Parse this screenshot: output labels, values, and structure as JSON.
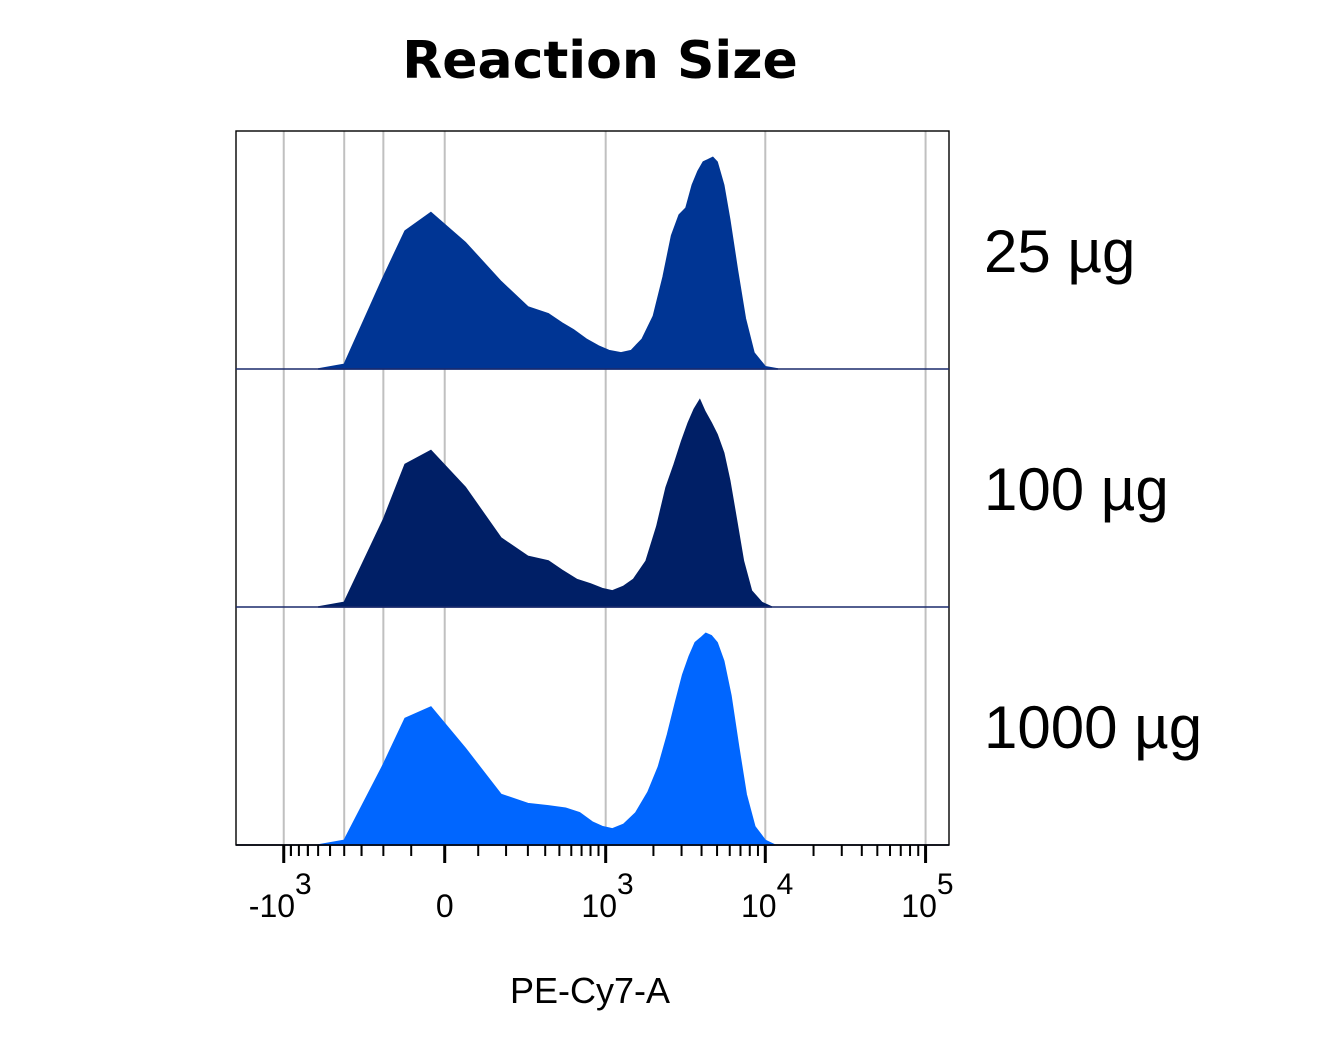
{
  "chart_data": {
    "type": "area",
    "title": "Reaction Size",
    "xlabel": "PE-Cy7-A",
    "x_scale": "biexponential",
    "xlim": [
      -2000,
      140000
    ],
    "x_ticks": [
      {
        "value": -1000,
        "base": "-10",
        "exp": "3"
      },
      {
        "value": 0,
        "base": "0",
        "exp": ""
      },
      {
        "value": 1000,
        "base": "10",
        "exp": "3"
      },
      {
        "value": 10000,
        "base": "10",
        "exp": "4"
      },
      {
        "value": 100000,
        "base": "10",
        "exp": "5"
      }
    ],
    "gridlines": [
      -1000,
      -400,
      -200,
      0,
      1000,
      10000,
      100000
    ],
    "grid": true,
    "series": [
      {
        "name": "25 µg",
        "color": "#003594",
        "points": [
          [
            -600,
            0
          ],
          [
            -400,
            0.02
          ],
          [
            -200,
            0.4
          ],
          [
            -120,
            0.6
          ],
          [
            -40,
            0.68
          ],
          [
            60,
            0.55
          ],
          [
            180,
            0.38
          ],
          [
            300,
            0.27
          ],
          [
            420,
            0.24
          ],
          [
            520,
            0.2
          ],
          [
            620,
            0.17
          ],
          [
            750,
            0.13
          ],
          [
            900,
            0.1
          ],
          [
            1050,
            0.08
          ],
          [
            1250,
            0.07
          ],
          [
            1450,
            0.08
          ],
          [
            1700,
            0.13
          ],
          [
            2000,
            0.23
          ],
          [
            2300,
            0.4
          ],
          [
            2600,
            0.58
          ],
          [
            2900,
            0.67
          ],
          [
            3200,
            0.7
          ],
          [
            3500,
            0.8
          ],
          [
            3800,
            0.86
          ],
          [
            4100,
            0.9
          ],
          [
            4400,
            0.91
          ],
          [
            4700,
            0.92
          ],
          [
            5000,
            0.9
          ],
          [
            5500,
            0.8
          ],
          [
            6000,
            0.65
          ],
          [
            6700,
            0.43
          ],
          [
            7500,
            0.22
          ],
          [
            8500,
            0.07
          ],
          [
            10000,
            0.01
          ],
          [
            12000,
            0
          ]
        ]
      },
      {
        "name": "100 µg",
        "color": "#001f66",
        "points": [
          [
            -600,
            0
          ],
          [
            -400,
            0.02
          ],
          [
            -200,
            0.38
          ],
          [
            -120,
            0.62
          ],
          [
            -40,
            0.68
          ],
          [
            60,
            0.52
          ],
          [
            180,
            0.3
          ],
          [
            300,
            0.22
          ],
          [
            420,
            0.2
          ],
          [
            520,
            0.16
          ],
          [
            650,
            0.12
          ],
          [
            800,
            0.1
          ],
          [
            950,
            0.08
          ],
          [
            1100,
            0.07
          ],
          [
            1300,
            0.09
          ],
          [
            1500,
            0.12
          ],
          [
            1800,
            0.2
          ],
          [
            2100,
            0.35
          ],
          [
            2400,
            0.52
          ],
          [
            2700,
            0.62
          ],
          [
            3000,
            0.72
          ],
          [
            3300,
            0.8
          ],
          [
            3600,
            0.86
          ],
          [
            3900,
            0.9
          ],
          [
            4200,
            0.85
          ],
          [
            4600,
            0.8
          ],
          [
            5000,
            0.75
          ],
          [
            5500,
            0.67
          ],
          [
            6000,
            0.55
          ],
          [
            6600,
            0.38
          ],
          [
            7300,
            0.2
          ],
          [
            8200,
            0.07
          ],
          [
            9500,
            0.02
          ],
          [
            11000,
            0
          ]
        ]
      },
      {
        "name": "1000 µg",
        "color": "#0066ff",
        "points": [
          [
            -600,
            0
          ],
          [
            -400,
            0.02
          ],
          [
            -200,
            0.35
          ],
          [
            -120,
            0.55
          ],
          [
            -40,
            0.6
          ],
          [
            60,
            0.42
          ],
          [
            180,
            0.22
          ],
          [
            300,
            0.18
          ],
          [
            420,
            0.17
          ],
          [
            550,
            0.16
          ],
          [
            680,
            0.14
          ],
          [
            820,
            0.1
          ],
          [
            950,
            0.08
          ],
          [
            1100,
            0.07
          ],
          [
            1300,
            0.09
          ],
          [
            1550,
            0.14
          ],
          [
            1850,
            0.23
          ],
          [
            2150,
            0.34
          ],
          [
            2450,
            0.48
          ],
          [
            2750,
            0.62
          ],
          [
            3050,
            0.74
          ],
          [
            3350,
            0.82
          ],
          [
            3650,
            0.88
          ],
          [
            3950,
            0.9
          ],
          [
            4250,
            0.92
          ],
          [
            4600,
            0.91
          ],
          [
            5000,
            0.88
          ],
          [
            5500,
            0.8
          ],
          [
            6100,
            0.65
          ],
          [
            6800,
            0.43
          ],
          [
            7600,
            0.22
          ],
          [
            8600,
            0.08
          ],
          [
            10000,
            0.02
          ],
          [
            11500,
            0
          ]
        ]
      }
    ]
  }
}
